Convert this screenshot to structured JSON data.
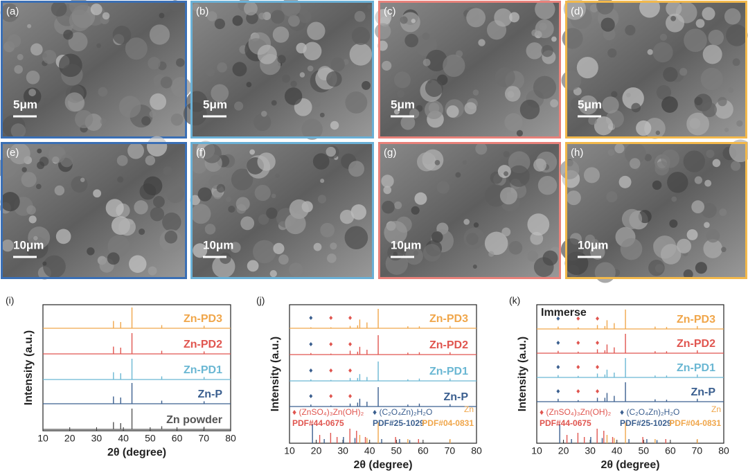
{
  "images": [
    {
      "label": "(a)",
      "scale": "5μm",
      "border_color": "#3a6fb5"
    },
    {
      "label": "(b)",
      "scale": "5μm",
      "border_color": "#6ab0d6"
    },
    {
      "label": "(c)",
      "scale": "5μm",
      "border_color": "#e8817a"
    },
    {
      "label": "(d)",
      "scale": "5μm",
      "border_color": "#f2b84b"
    },
    {
      "label": "(e)",
      "scale": "10μm",
      "border_color": "#3a6fb5"
    },
    {
      "label": "(f)",
      "scale": "10μm",
      "border_color": "#6ab0d6"
    },
    {
      "label": "(g)",
      "scale": "10μm",
      "border_color": "#e8817a"
    },
    {
      "label": "(h)",
      "scale": "10μm",
      "border_color": "#f2b84b"
    }
  ],
  "chart_data": [
    {
      "type": "xrd",
      "panel": "(i)",
      "x_label": "2θ (degree)",
      "y_label": "Intensity (a.u.)",
      "xlim": [
        10,
        80
      ],
      "xticks": [
        10,
        20,
        30,
        40,
        50,
        60,
        70,
        80
      ],
      "peaks": [
        36.3,
        39.0,
        43.2,
        54.3,
        70.1
      ],
      "series": [
        {
          "name": "Zn powder",
          "color": "#555555",
          "heights": [
            0.35,
            0.3,
            1,
            0.15,
            0.12
          ]
        },
        {
          "name": "Zn-P",
          "color": "#3b5f8f",
          "heights": [
            0.35,
            0.3,
            1,
            0.15,
            0.12
          ]
        },
        {
          "name": "Zn-PD1",
          "color": "#6ab7d3",
          "heights": [
            0.35,
            0.3,
            1,
            0.15,
            0.12
          ]
        },
        {
          "name": "Zn-PD2",
          "color": "#e0554f",
          "heights": [
            0.35,
            0.3,
            1,
            0.15,
            0.12
          ]
        },
        {
          "name": "Zn-PD3",
          "color": "#f0a64a",
          "heights": [
            0.35,
            0.3,
            1,
            0.15,
            0.12
          ]
        }
      ]
    },
    {
      "type": "xrd",
      "panel": "(j)",
      "x_label": "2θ (degree)",
      "y_label": "Intensity (a.u.)",
      "xlim": [
        10,
        80
      ],
      "xticks": [
        10,
        20,
        30,
        40,
        50,
        60,
        70,
        80
      ],
      "peaks": [
        18.0,
        25.5,
        32.7,
        35.5,
        36.3,
        39.0,
        43.2,
        54.3,
        58.6,
        70.1
      ],
      "markers": [
        {
          "x": 18.0,
          "color": "#3b5f8f"
        },
        {
          "x": 25.5,
          "color": "#e0554f"
        },
        {
          "x": 32.7,
          "color": "#e0554f"
        }
      ],
      "series": [
        {
          "name": "Zn-P",
          "color": "#3b5f8f",
          "heights": [
            0.1,
            0.05,
            0.15,
            0.2,
            0.4,
            0.25,
            1,
            0.1,
            0.15,
            0.12
          ]
        },
        {
          "name": "Zn-PD1",
          "color": "#6ab7d3",
          "heights": [
            0.08,
            0.05,
            0.15,
            0.15,
            0.35,
            0.2,
            1,
            0.08,
            0.12,
            0.12
          ]
        },
        {
          "name": "Zn-PD2",
          "color": "#e0554f",
          "heights": [
            0.08,
            0.05,
            0.2,
            0.15,
            0.4,
            0.25,
            1,
            0.1,
            0.12,
            0.12
          ]
        },
        {
          "name": "Zn-PD3",
          "color": "#f0a64a",
          "heights": [
            0.05,
            0.05,
            0.12,
            0.15,
            0.45,
            0.3,
            1,
            0.1,
            0.1,
            0.12
          ]
        }
      ],
      "references": [
        {
          "label": "♦ (ZnSO₄)₃Zn(OH)₂",
          "pdf": "PDF#44-0675",
          "color": "#e0554f",
          "x": [
            21.3,
            25.4,
            27.8,
            32.6,
            35.1,
            38.4,
            49.7,
            58.3
          ],
          "heights": [
            0.4,
            0.5,
            0.3,
            0.7,
            0.6,
            0.3,
            0.3,
            0.2
          ]
        },
        {
          "label": "♦ (C₂O₄Zn)₂H₂O",
          "pdf": "PDF#25-1029",
          "color": "#3b5f8f",
          "x": [
            18.6,
            23.0,
            30.2,
            34.5,
            44.5,
            51.2,
            55.0
          ],
          "heights": [
            0.9,
            0.2,
            0.3,
            0.25,
            0.2,
            0.2,
            0.15
          ]
        },
        {
          "label": "Zn",
          "pdf": "PDF#04-0831",
          "color": "#f0a64a",
          "x": [
            36.3,
            39.0,
            43.2,
            54.3,
            70.1
          ],
          "heights": [
            0.4,
            0.25,
            1,
            0.2,
            0.2
          ]
        }
      ]
    },
    {
      "type": "xrd",
      "panel": "(k)",
      "x_label": "2θ (degree)",
      "y_label": "Intensity (a.u.)",
      "annotation": "Immerse",
      "xlim": [
        10,
        80
      ],
      "xticks": [
        10,
        20,
        30,
        40,
        50,
        60,
        70,
        80
      ],
      "peaks": [
        18.0,
        25.5,
        32.7,
        35.5,
        36.3,
        39.0,
        43.2,
        54.3,
        58.6,
        70.1
      ],
      "markers": [
        {
          "x": 18.0,
          "color": "#3b5f8f"
        },
        {
          "x": 25.5,
          "color": "#e0554f"
        },
        {
          "x": 32.7,
          "color": "#e0554f"
        }
      ],
      "series": [
        {
          "name": "Zn-P",
          "color": "#3b5f8f",
          "heights": [
            0.15,
            0.08,
            0.2,
            0.2,
            0.45,
            0.3,
            1,
            0.12,
            0.1,
            0.15
          ]
        },
        {
          "name": "Zn-PD1",
          "color": "#6ab7d3",
          "heights": [
            0.12,
            0.08,
            0.2,
            0.15,
            0.4,
            0.25,
            1,
            0.1,
            0.1,
            0.15
          ]
        },
        {
          "name": "Zn-PD2",
          "color": "#e0554f",
          "heights": [
            0.12,
            0.08,
            0.2,
            0.15,
            0.45,
            0.3,
            1,
            0.1,
            0.1,
            0.15
          ]
        },
        {
          "name": "Zn-PD3",
          "color": "#f0a64a",
          "heights": [
            0.12,
            0.08,
            0.2,
            0.15,
            0.45,
            0.3,
            1,
            0.12,
            0.1,
            0.15
          ]
        }
      ],
      "references": [
        {
          "label": "♦ (ZnSO₄)₃Zn(OH)₂",
          "pdf": "PDF#44-0675",
          "color": "#e0554f",
          "x": [
            21.3,
            25.4,
            27.8,
            32.6,
            35.1,
            38.4,
            49.7,
            58.3
          ],
          "heights": [
            0.4,
            0.5,
            0.3,
            0.7,
            0.6,
            0.3,
            0.3,
            0.2
          ]
        },
        {
          "label": "♦ (C₂O₄Zn)₂H₂O",
          "pdf": "PDF#25-1029",
          "color": "#3b5f8f",
          "x": [
            18.6,
            23.0,
            30.2,
            34.5,
            44.5,
            51.2,
            55.0
          ],
          "heights": [
            0.9,
            0.2,
            0.3,
            0.25,
            0.2,
            0.2,
            0.15
          ]
        },
        {
          "label": "Zn",
          "pdf": "PDF#04-0831",
          "color": "#f0a64a",
          "x": [
            36.3,
            39.0,
            43.2,
            54.3,
            70.1
          ],
          "heights": [
            0.4,
            0.25,
            1,
            0.2,
            0.2
          ]
        }
      ]
    }
  ]
}
